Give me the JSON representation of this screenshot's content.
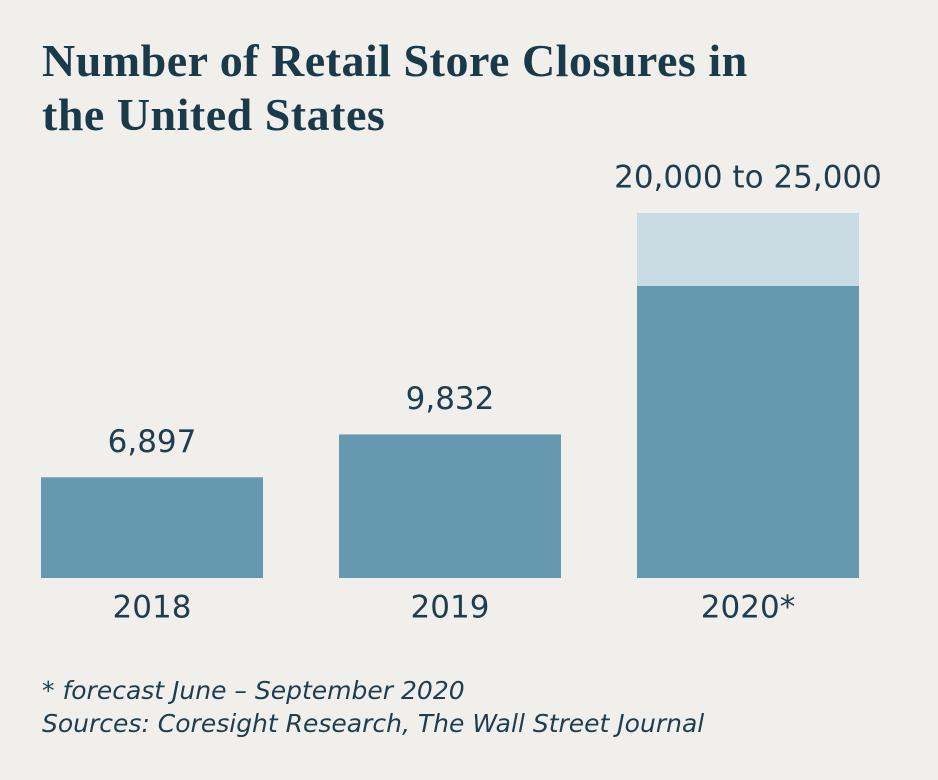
{
  "chart_data": {
    "type": "bar",
    "title": "Number of Retail Store Closures in the United States",
    "categories": [
      "2018",
      "2019",
      "2020*"
    ],
    "series": [
      {
        "color": "#6699b0",
        "values": [
          6897,
          9832,
          20000
        ],
        "value_labels": [
          "6,897",
          "9,832",
          "20,000 to 25,000"
        ]
      },
      {
        "color": "#c9dce4",
        "values": [
          null,
          null,
          5000
        ]
      }
    ],
    "ylim": [
      0,
      25000
    ],
    "notes": [
      "* forecast June – September 2020",
      "Sources: Coresight Research, The Wall Street Journal"
    ]
  }
}
